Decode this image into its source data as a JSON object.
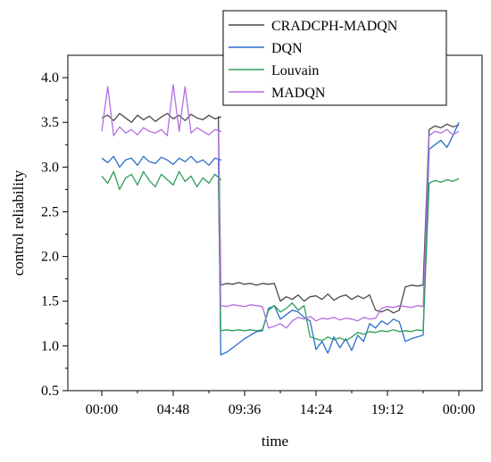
{
  "chart_data": {
    "type": "line",
    "title": "",
    "xlabel": "time",
    "ylabel": "control reliability",
    "xlim": [
      0,
      1440
    ],
    "ylim": [
      0.5,
      4.25
    ],
    "x_ticks": [
      {
        "value": 0,
        "label": "00:00"
      },
      {
        "value": 288,
        "label": "04:48"
      },
      {
        "value": 576,
        "label": "09:36"
      },
      {
        "value": 864,
        "label": "14:24"
      },
      {
        "value": 1152,
        "label": "19:12"
      },
      {
        "value": 1440,
        "label": "00:00"
      }
    ],
    "y_ticks": [
      {
        "value": 0.5,
        "label": "0.5"
      },
      {
        "value": 1.0,
        "label": "1.0"
      },
      {
        "value": 1.5,
        "label": "1.5"
      },
      {
        "value": 2.0,
        "label": "2.0"
      },
      {
        "value": 2.5,
        "label": "2.5"
      },
      {
        "value": 3.0,
        "label": "3.0"
      },
      {
        "value": 3.5,
        "label": "3.5"
      },
      {
        "value": 4.0,
        "label": "4.0"
      }
    ],
    "legend_position": "top-right",
    "grid": false,
    "series": [
      {
        "name": "CRADCPH-MADQN",
        "color": "#4a4a4a",
        "x": [
          0,
          24,
          48,
          72,
          96,
          120,
          144,
          168,
          192,
          216,
          240,
          264,
          288,
          312,
          336,
          360,
          384,
          408,
          432,
          456,
          480,
          470,
          480,
          504,
          528,
          552,
          576,
          600,
          624,
          648,
          672,
          696,
          720,
          744,
          768,
          792,
          816,
          840,
          864,
          888,
          912,
          936,
          960,
          984,
          1008,
          1032,
          1056,
          1080,
          1104,
          1128,
          1152,
          1176,
          1200,
          1224,
          1248,
          1272,
          1296,
          1320,
          1344,
          1368,
          1392,
          1416,
          1440
        ],
        "y": [
          3.55,
          3.58,
          3.52,
          3.6,
          3.55,
          3.5,
          3.58,
          3.53,
          3.57,
          3.51,
          3.56,
          3.6,
          3.54,
          3.58,
          3.52,
          3.59,
          3.55,
          3.53,
          3.58,
          3.54,
          3.56,
          3.56,
          1.68,
          1.7,
          1.69,
          1.71,
          1.69,
          1.7,
          1.68,
          1.7,
          1.69,
          1.7,
          1.5,
          1.55,
          1.52,
          1.57,
          1.5,
          1.55,
          1.56,
          1.52,
          1.58,
          1.51,
          1.55,
          1.57,
          1.52,
          1.56,
          1.53,
          1.57,
          1.4,
          1.38,
          1.41,
          1.37,
          1.4,
          1.66,
          1.68,
          1.67,
          1.68,
          3.42,
          3.46,
          3.44,
          3.48,
          3.45,
          3.47
        ]
      },
      {
        "name": "DQN",
        "color": "#2a6fc9",
        "x": [
          0,
          24,
          48,
          72,
          96,
          120,
          144,
          168,
          192,
          216,
          240,
          264,
          288,
          312,
          336,
          360,
          384,
          408,
          432,
          456,
          480,
          470,
          480,
          504,
          528,
          552,
          576,
          600,
          624,
          648,
          672,
          696,
          720,
          744,
          768,
          792,
          816,
          840,
          864,
          888,
          912,
          936,
          960,
          984,
          1008,
          1032,
          1056,
          1080,
          1104,
          1128,
          1152,
          1176,
          1200,
          1224,
          1248,
          1272,
          1296,
          1320,
          1344,
          1368,
          1392,
          1416,
          1440
        ],
        "y": [
          3.1,
          3.05,
          3.12,
          3.0,
          3.08,
          3.1,
          3.02,
          3.12,
          3.06,
          3.04,
          3.11,
          3.08,
          3.03,
          3.1,
          3.06,
          3.12,
          3.05,
          3.08,
          3.02,
          3.1,
          3.08,
          3.08,
          0.9,
          0.93,
          0.98,
          1.03,
          1.08,
          1.12,
          1.16,
          1.17,
          1.42,
          1.45,
          1.3,
          1.35,
          1.4,
          1.38,
          1.32,
          1.28,
          0.96,
          1.05,
          0.92,
          1.1,
          0.98,
          1.08,
          0.95,
          1.12,
          1.05,
          1.25,
          1.2,
          1.28,
          1.24,
          1.3,
          1.27,
          1.05,
          1.08,
          1.1,
          1.12,
          3.2,
          3.25,
          3.3,
          3.22,
          3.35,
          3.5
        ]
      },
      {
        "name": "Louvain",
        "color": "#2e9e5a",
        "x": [
          0,
          24,
          48,
          72,
          96,
          120,
          144,
          168,
          192,
          216,
          240,
          264,
          288,
          312,
          336,
          360,
          384,
          408,
          432,
          456,
          480,
          470,
          480,
          504,
          528,
          552,
          576,
          600,
          624,
          648,
          672,
          696,
          720,
          744,
          768,
          792,
          816,
          840,
          864,
          888,
          912,
          936,
          960,
          984,
          1008,
          1032,
          1056,
          1080,
          1104,
          1128,
          1152,
          1176,
          1200,
          1224,
          1248,
          1272,
          1296,
          1320,
          1344,
          1368,
          1392,
          1416,
          1440
        ],
        "y": [
          2.9,
          2.82,
          2.95,
          2.75,
          2.88,
          2.92,
          2.8,
          2.95,
          2.85,
          2.78,
          2.92,
          2.86,
          2.8,
          2.95,
          2.84,
          2.9,
          2.78,
          2.88,
          2.82,
          2.92,
          2.86,
          2.86,
          1.17,
          1.18,
          1.17,
          1.18,
          1.17,
          1.18,
          1.17,
          1.18,
          1.4,
          1.45,
          1.38,
          1.42,
          1.48,
          1.4,
          1.45,
          1.1,
          1.08,
          1.06,
          1.1,
          1.07,
          1.09,
          1.06,
          1.1,
          1.15,
          1.13,
          1.16,
          1.15,
          1.17,
          1.16,
          1.18,
          1.16,
          1.17,
          1.16,
          1.18,
          1.17,
          2.82,
          2.85,
          2.83,
          2.86,
          2.84,
          2.87
        ]
      },
      {
        "name": "MADQN",
        "color": "#b36ee0",
        "x": [
          0,
          24,
          48,
          72,
          96,
          120,
          144,
          168,
          192,
          216,
          240,
          264,
          288,
          312,
          336,
          360,
          384,
          408,
          432,
          456,
          480,
          470,
          480,
          504,
          528,
          552,
          576,
          600,
          624,
          648,
          672,
          696,
          720,
          744,
          768,
          792,
          816,
          840,
          864,
          888,
          912,
          936,
          960,
          984,
          1008,
          1032,
          1056,
          1080,
          1104,
          1128,
          1152,
          1176,
          1200,
          1224,
          1248,
          1272,
          1296,
          1320,
          1344,
          1368,
          1392,
          1416,
          1440
        ],
        "y": [
          3.4,
          3.9,
          3.35,
          3.45,
          3.38,
          3.42,
          3.36,
          3.44,
          3.4,
          3.38,
          3.42,
          3.35,
          3.92,
          3.4,
          3.9,
          3.38,
          3.44,
          3.4,
          3.36,
          3.42,
          3.4,
          3.4,
          1.45,
          1.44,
          1.46,
          1.45,
          1.44,
          1.46,
          1.45,
          1.44,
          1.2,
          1.22,
          1.25,
          1.2,
          1.28,
          1.32,
          1.3,
          1.33,
          1.28,
          1.31,
          1.3,
          1.32,
          1.29,
          1.31,
          1.3,
          1.28,
          1.32,
          1.3,
          1.31,
          1.42,
          1.44,
          1.43,
          1.45,
          1.44,
          1.43,
          1.45,
          1.44,
          3.35,
          3.4,
          3.38,
          3.42,
          3.36,
          3.4
        ]
      }
    ]
  }
}
